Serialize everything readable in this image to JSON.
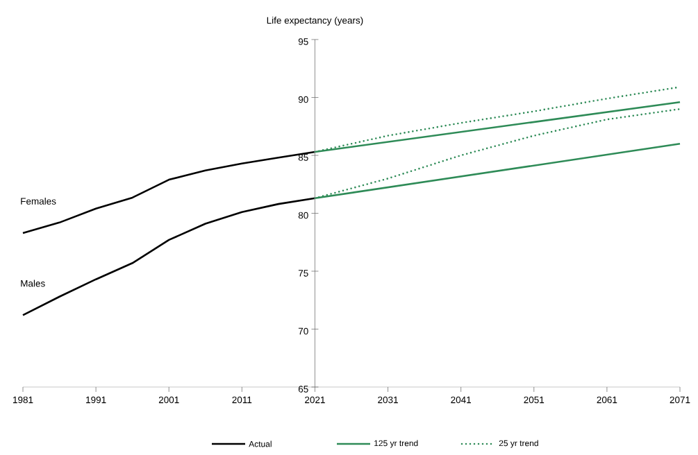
{
  "chart_data": {
    "type": "line",
    "ylabel": "Life expectancy (years)",
    "xlim": [
      1981,
      2071
    ],
    "xticks": [
      1981,
      1991,
      2001,
      2011,
      2021,
      2031,
      2041,
      2051,
      2061,
      2071
    ],
    "ylim": [
      65,
      95
    ],
    "yticks": [
      65,
      70,
      75,
      80,
      85,
      90,
      95
    ],
    "legend": "bottom",
    "grid": false,
    "marker": "none",
    "series": [
      {
        "name": "Actual",
        "color": "#000000",
        "line_style": "solid",
        "x": [
          1981,
          1986,
          1991,
          1996,
          2001,
          2006,
          2011,
          2016,
          2021
        ],
        "values": [
          78.3,
          79.2,
          80.4,
          81.35,
          82.9,
          83.7,
          84.3,
          84.8,
          85.3
        ]
      },
      {
        "color": "#000000",
        "line_style": "solid",
        "x": [
          1981,
          1986,
          1991,
          1996,
          2001,
          2006,
          2011,
          2016,
          2021
        ],
        "values": [
          71.2,
          72.8,
          74.3,
          75.7,
          77.7,
          79.1,
          80.1,
          80.8,
          81.3
        ]
      },
      {
        "name": "125 yr trend",
        "color": "#2e8b57",
        "line_style": "solid",
        "x": [
          2021,
          2071
        ],
        "values": [
          85.3,
          89.6
        ]
      },
      {
        "color": "#2e8b57",
        "line_style": "solid",
        "x": [
          2021,
          2071
        ],
        "values": [
          81.3,
          86.0
        ]
      },
      {
        "name": "25 yr trend",
        "color": "#2e8b57",
        "line_style": "dotted",
        "x": [
          2021,
          2031,
          2041,
          2051,
          2061,
          2071
        ],
        "values": [
          85.3,
          86.7,
          87.8,
          88.8,
          89.9,
          90.9
        ]
      },
      {
        "color": "#2e8b57",
        "line_style": "dotted",
        "x": [
          2021,
          2031,
          2041,
          2051,
          2061,
          2071
        ],
        "values": [
          81.3,
          83.0,
          85.0,
          86.7,
          88.1,
          89.0
        ]
      }
    ],
    "annotations": [
      "Females",
      "Males"
    ]
  }
}
